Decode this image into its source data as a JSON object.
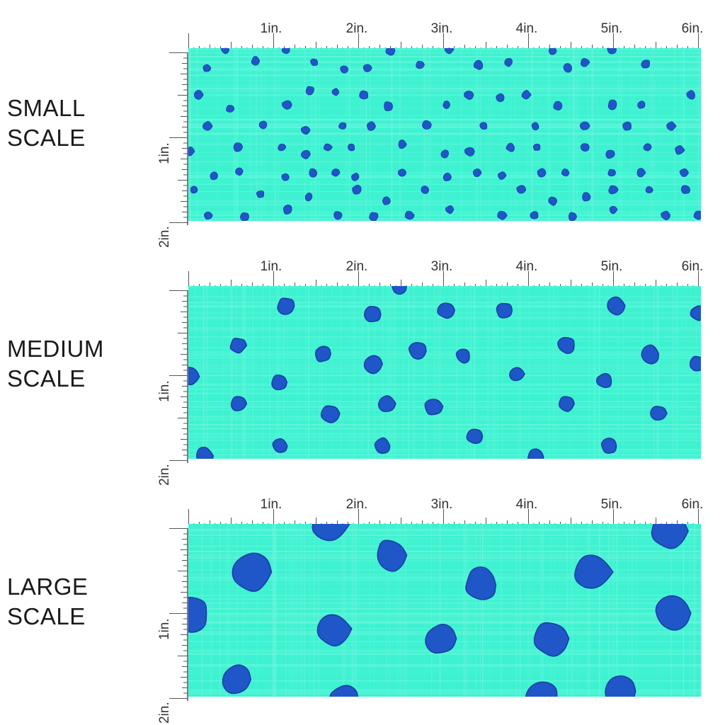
{
  "colors": {
    "fabric_base": "#3df2d0",
    "fabric_light": "#6ff7df",
    "dot": "#1f56c8",
    "dot_dark": "#163f9e",
    "ruler": "#555555"
  },
  "ruler_labels": {
    "horizontal": [
      "1in.",
      "2in.",
      "3in.",
      "4in.",
      "5in.",
      "6in."
    ],
    "vertical": [
      "1in.",
      "2in."
    ]
  },
  "scales": [
    {
      "title_line1": "SMALL",
      "title_line2": "SCALE",
      "pattern": "small"
    },
    {
      "title_line1": "MEDIUM",
      "title_line2": "SCALE",
      "pattern": "medium"
    },
    {
      "title_line1": "LARGE",
      "title_line2": "SCALE",
      "pattern": "large"
    }
  ]
}
